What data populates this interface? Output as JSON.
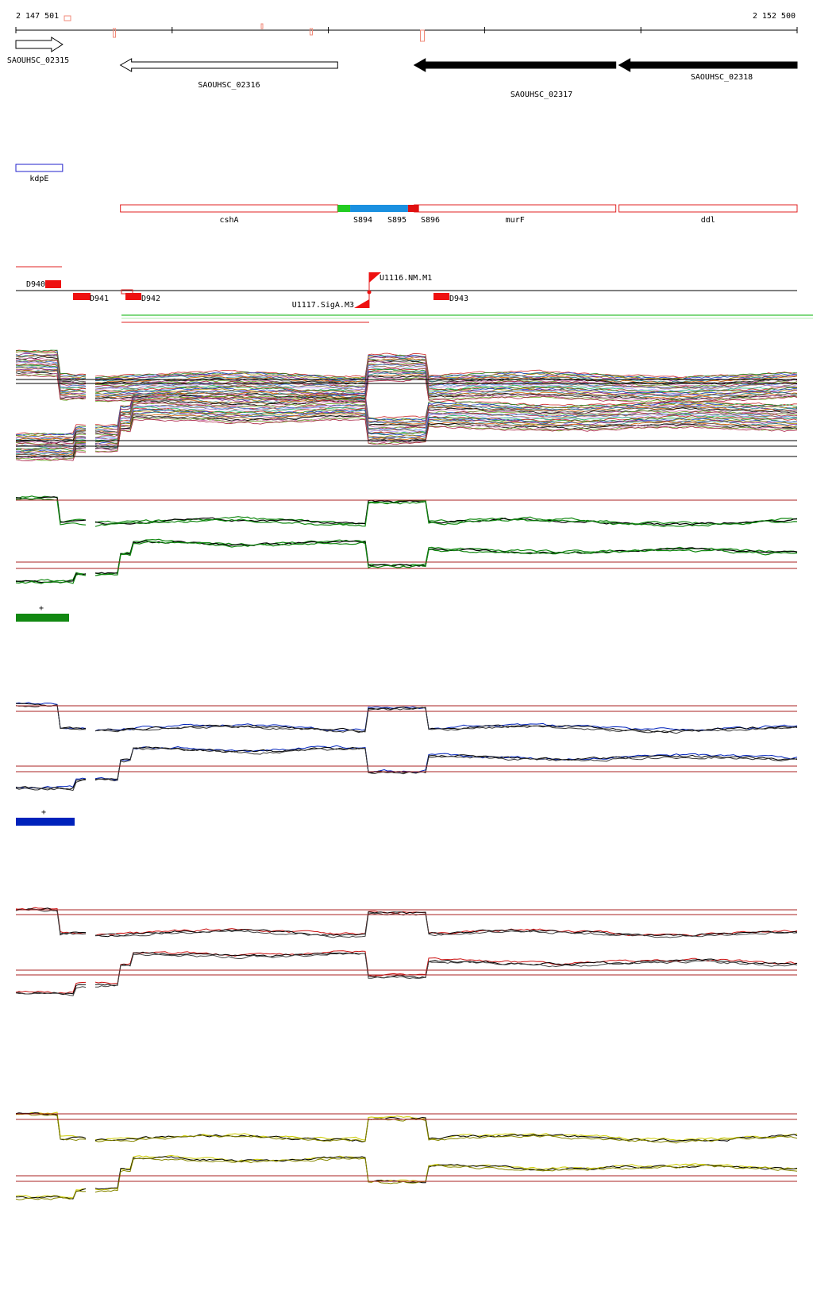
{
  "coordinates": {
    "start": "2 147 501",
    "end": "2 152 500",
    "start_bp": 2147501,
    "end_bp": 2152500
  },
  "genes": [
    {
      "name": "SAOUHSC_02315",
      "start_bp": 2147501,
      "end_bp": 2147800,
      "strand": "+",
      "fill": "#ffffff"
    },
    {
      "name": "SAOUHSC_02316",
      "start_bp": 2148170,
      "end_bp": 2149560,
      "strand": "-",
      "fill": "#ffffff"
    },
    {
      "name": "SAOUHSC_02317",
      "start_bp": 2150050,
      "end_bp": 2151340,
      "strand": "-",
      "fill": "#000000"
    },
    {
      "name": "SAOUHSC_02318",
      "start_bp": 2151360,
      "end_bp": 2152500,
      "strand": "-",
      "fill": "#000000"
    }
  ],
  "operons": [
    {
      "name": "kdpE",
      "start_bp": 2147501,
      "end_bp": 2147800,
      "color": "#2222cc"
    }
  ],
  "annotations": [
    {
      "name": "cshA",
      "start_bp": 2148170,
      "end_bp": 2149560,
      "color": "#e02020"
    },
    {
      "name": "murF",
      "start_bp": 2150050,
      "end_bp": 2151340,
      "color": "#e02020"
    },
    {
      "name": "ddl",
      "start_bp": 2151360,
      "end_bp": 2152500,
      "color": "#e02020"
    }
  ],
  "segments": [
    {
      "name": "S894",
      "start_bp": 2149560,
      "end_bp": 2149640,
      "color": "#22cc22"
    },
    {
      "name": "S895",
      "start_bp": 2149640,
      "end_bp": 2150010,
      "color": "#1a90e0"
    },
    {
      "name": "S896",
      "start_bp": 2150010,
      "end_bp": 2150080,
      "color": "#e01010"
    }
  ],
  "downstream_features": [
    {
      "name": "D940",
      "bp": 2147800
    },
    {
      "name": "D941",
      "bp": 2147960
    },
    {
      "name": "D942",
      "bp": 2148240
    },
    {
      "name": "D943",
      "bp": 2150060
    }
  ],
  "upstream_features": [
    {
      "name": "U1116.NM.M1",
      "bp": 2149580,
      "strand": "+"
    },
    {
      "name": "U1117.SigA.M3",
      "bp": 2149580,
      "strand": "-"
    }
  ],
  "legend": {
    "plus_symbol": "+"
  },
  "colors": {
    "green": "#118811",
    "blue": "#0022bb",
    "red": "#cc1111",
    "yellow": "#cccc00"
  }
}
